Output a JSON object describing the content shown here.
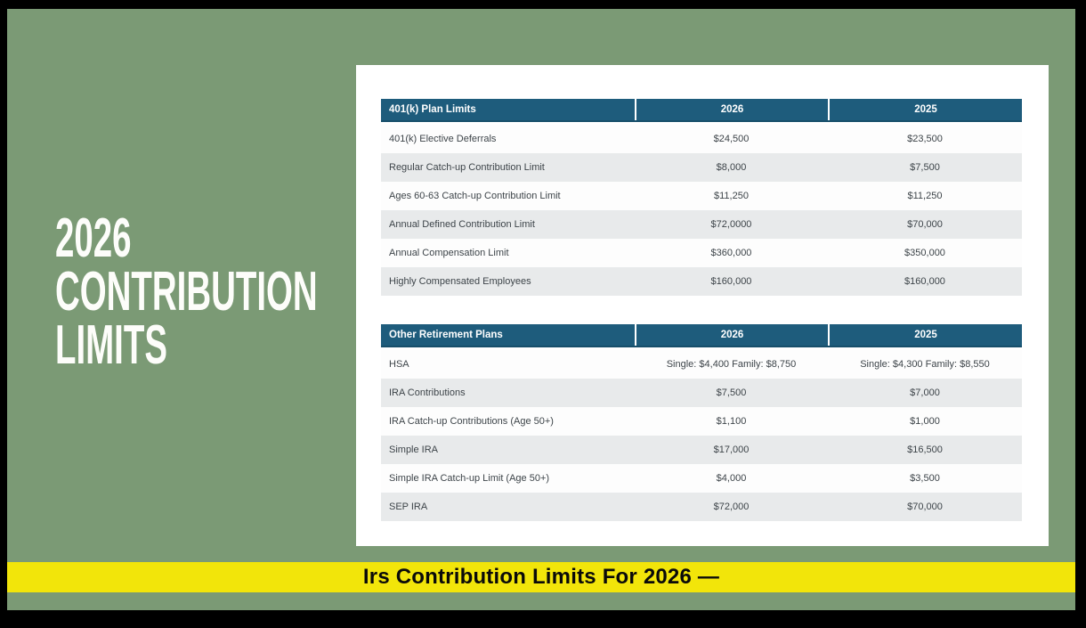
{
  "slide": {
    "title_lines": [
      "2026",
      "CONTRIBUTION",
      "LIMITS"
    ]
  },
  "caption": {
    "text": "Irs Contribution Limits For 2026 —"
  },
  "colors": {
    "green": "#7b9a75",
    "teal": "#1e5c7c",
    "yellow": "#f2e50a",
    "rowgray": "#e8eaeb",
    "frame": "#000000"
  },
  "table_401k": {
    "header": {
      "label": "401(k) Plan Limits",
      "col_2026": "2026",
      "col_2025": "2025"
    },
    "rows": [
      {
        "label": "401(k) Elective Deferrals",
        "y2026": "$24,500",
        "y2025": "$23,500"
      },
      {
        "label": "Regular Catch-up Contribution Limit",
        "y2026": "$8,000",
        "y2025": "$7,500"
      },
      {
        "label": "Ages 60-63 Catch-up Contribution Limit",
        "y2026": "$11,250",
        "y2025": "$11,250"
      },
      {
        "label": "Annual Defined Contribution Limit",
        "y2026": "$72,0000",
        "y2025": "$70,000"
      },
      {
        "label": "Annual Compensation Limit",
        "y2026": "$360,000",
        "y2025": "$350,000"
      },
      {
        "label": "Highly Compensated Employees",
        "y2026": "$160,000",
        "y2025": "$160,000"
      }
    ]
  },
  "table_other": {
    "header": {
      "label": "Other Retirement Plans",
      "col_2026": "2026",
      "col_2025": "2025"
    },
    "rows": [
      {
        "label": "HSA",
        "y2026": "Single: $4,400 Family: $8,750",
        "y2025": "Single: $4,300 Family: $8,550"
      },
      {
        "label": "IRA Contributions",
        "y2026": "$7,500",
        "y2025": "$7,000"
      },
      {
        "label": "IRA Catch-up Contributions (Age 50+)",
        "y2026": "$1,100",
        "y2025": "$1,000"
      },
      {
        "label": "Simple IRA",
        "y2026": "$17,000",
        "y2025": "$16,500"
      },
      {
        "label": "Simple IRA Catch-up Limit (Age 50+)",
        "y2026": "$4,000",
        "y2025": "$3,500"
      },
      {
        "label": "SEP IRA",
        "y2026": "$72,000",
        "y2025": "$70,000"
      }
    ]
  }
}
